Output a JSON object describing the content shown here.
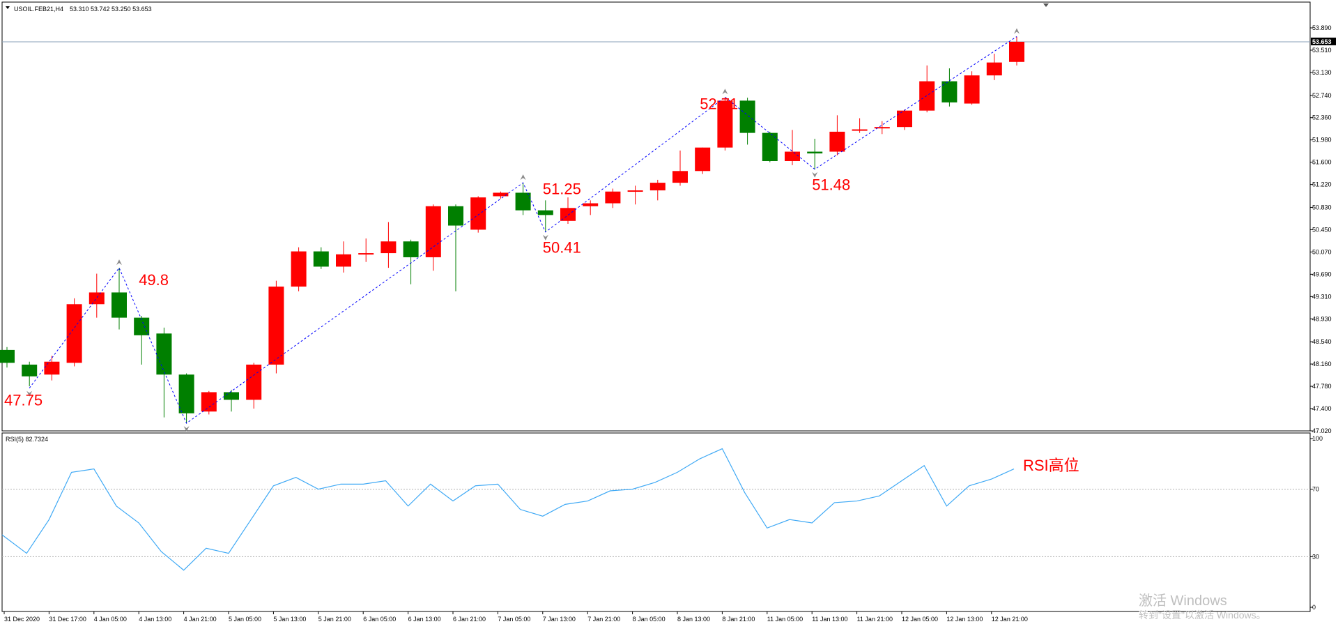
{
  "header": {
    "symbol": "USOIL.FEB21,H4",
    "ohlc": "53.310 53.742 53.250 53.653"
  },
  "current_price_label": "53.653",
  "rsi_header": "RSI(5) 82.7324",
  "watermark": {
    "line1": "激活 Windows",
    "line2": "转到\"设置\"以激活 Windows。"
  },
  "colors": {
    "bull": "#ff0000",
    "bear": "#007f00",
    "zigzag": "#0000ff",
    "rsi": "#3fa9f5",
    "annotation": "#ff0000",
    "axis_text": "#000000"
  },
  "chart_data": [
    {
      "type": "candlestick",
      "title": "USOIL.FEB21,H4",
      "ylim": [
        47.0,
        54.0
      ],
      "y_ticks": [
        "53.890",
        "53.510",
        "53.130",
        "52.740",
        "52.360",
        "51.980",
        "51.600",
        "51.220",
        "50.830",
        "50.450",
        "50.070",
        "49.690",
        "49.310",
        "48.930",
        "48.540",
        "48.160",
        "47.780",
        "47.400",
        "47.020"
      ],
      "y_tick_values": [
        53.89,
        53.51,
        53.13,
        52.74,
        52.36,
        51.98,
        51.6,
        51.22,
        50.83,
        50.45,
        50.07,
        49.69,
        49.31,
        48.93,
        48.54,
        48.16,
        47.78,
        47.4,
        47.02
      ],
      "current_price": 53.653,
      "candles": [
        {
          "o": 48.4,
          "h": 48.45,
          "c": 48.18,
          "l": 48.1
        },
        {
          "o": 48.15,
          "h": 48.2,
          "c": 47.95,
          "l": 47.78
        },
        {
          "o": 47.98,
          "h": 48.3,
          "c": 48.2,
          "l": 47.88
        },
        {
          "o": 48.18,
          "h": 49.28,
          "c": 49.18,
          "l": 48.12
        },
        {
          "o": 49.18,
          "h": 49.7,
          "c": 49.38,
          "l": 48.95
        },
        {
          "o": 49.38,
          "h": 49.8,
          "c": 48.95,
          "l": 48.75
        },
        {
          "o": 48.95,
          "h": 48.98,
          "c": 48.65,
          "l": 48.15
        },
        {
          "o": 48.68,
          "h": 48.78,
          "c": 47.98,
          "l": 47.25
        },
        {
          "o": 47.98,
          "h": 48.0,
          "c": 47.32,
          "l": 47.15
        },
        {
          "o": 47.35,
          "h": 47.7,
          "c": 47.68,
          "l": 47.3
        },
        {
          "o": 47.68,
          "h": 47.72,
          "c": 47.55,
          "l": 47.35
        },
        {
          "o": 47.55,
          "h": 48.18,
          "c": 48.15,
          "l": 47.4
        },
        {
          "o": 48.15,
          "h": 49.58,
          "c": 49.48,
          "l": 48.0
        },
        {
          "o": 49.48,
          "h": 50.15,
          "c": 50.08,
          "l": 49.4
        },
        {
          "o": 50.08,
          "h": 50.15,
          "c": 49.82,
          "l": 49.78
        },
        {
          "o": 49.82,
          "h": 50.25,
          "c": 50.03,
          "l": 49.72
        },
        {
          "o": 50.03,
          "h": 50.3,
          "c": 50.05,
          "l": 49.9
        },
        {
          "o": 50.05,
          "h": 50.58,
          "c": 50.25,
          "l": 49.8
        },
        {
          "o": 50.25,
          "h": 50.28,
          "c": 49.98,
          "l": 49.52
        },
        {
          "o": 49.98,
          "h": 50.88,
          "c": 50.85,
          "l": 49.75
        },
        {
          "o": 50.85,
          "h": 50.88,
          "c": 50.52,
          "l": 49.4
        },
        {
          "o": 50.45,
          "h": 51.02,
          "c": 51.0,
          "l": 50.4
        },
        {
          "o": 51.02,
          "h": 51.1,
          "c": 51.08,
          "l": 50.98
        },
        {
          "o": 51.08,
          "h": 51.25,
          "c": 50.78,
          "l": 50.7
        },
        {
          "o": 50.78,
          "h": 50.95,
          "c": 50.7,
          "l": 50.42
        },
        {
          "o": 50.6,
          "h": 51.0,
          "c": 50.82,
          "l": 50.55
        },
        {
          "o": 50.85,
          "h": 50.95,
          "c": 50.9,
          "l": 50.7
        },
        {
          "o": 50.9,
          "h": 51.15,
          "c": 51.1,
          "l": 50.82
        },
        {
          "o": 51.1,
          "h": 51.2,
          "c": 51.12,
          "l": 50.88
        },
        {
          "o": 51.12,
          "h": 51.3,
          "c": 51.25,
          "l": 50.95
        },
        {
          "o": 51.25,
          "h": 51.8,
          "c": 51.45,
          "l": 51.2
        },
        {
          "o": 51.45,
          "h": 51.85,
          "c": 51.85,
          "l": 51.4
        },
        {
          "o": 51.85,
          "h": 52.71,
          "c": 52.65,
          "l": 51.8
        },
        {
          "o": 52.65,
          "h": 52.7,
          "c": 52.1,
          "l": 51.9
        },
        {
          "o": 52.1,
          "h": 52.12,
          "c": 51.62,
          "l": 51.6
        },
        {
          "o": 51.62,
          "h": 52.15,
          "c": 51.78,
          "l": 51.55
        },
        {
          "o": 51.78,
          "h": 52.0,
          "c": 51.75,
          "l": 51.48
        },
        {
          "o": 51.78,
          "h": 52.4,
          "c": 52.12,
          "l": 51.72
        },
        {
          "o": 52.15,
          "h": 52.35,
          "c": 52.16,
          "l": 52.1
        },
        {
          "o": 52.18,
          "h": 52.3,
          "c": 52.2,
          "l": 52.08
        },
        {
          "o": 52.2,
          "h": 52.5,
          "c": 52.48,
          "l": 52.15
        },
        {
          "o": 52.48,
          "h": 53.25,
          "c": 52.98,
          "l": 52.45
        },
        {
          "o": 52.98,
          "h": 53.2,
          "c": 52.62,
          "l": 52.55
        },
        {
          "o": 52.6,
          "h": 53.15,
          "c": 53.08,
          "l": 52.58
        },
        {
          "o": 53.08,
          "h": 53.45,
          "c": 53.3,
          "l": 53.0
        },
        {
          "o": 53.31,
          "h": 53.742,
          "c": 53.653,
          "l": 53.25
        }
      ],
      "zigzag": [
        {
          "i": 1,
          "v": 47.75
        },
        {
          "i": 5,
          "v": 49.8
        },
        {
          "i": 8,
          "v": 47.15
        },
        {
          "i": 23,
          "v": 51.25
        },
        {
          "i": 24,
          "v": 50.41
        },
        {
          "i": 32,
          "v": 52.71
        },
        {
          "i": 36,
          "v": 51.48
        },
        {
          "i": 45,
          "v": 53.742
        }
      ],
      "annotations": [
        {
          "text": "47.75",
          "i": 0,
          "v": 47.55
        },
        {
          "text": "49.8",
          "i": 6,
          "v": 49.6
        },
        {
          "text": "51.25",
          "i": 24,
          "v": 51.15
        },
        {
          "text": "50.41",
          "i": 24,
          "v": 50.15
        },
        {
          "text": "52.71",
          "i": 31,
          "v": 52.6
        },
        {
          "text": "51.48",
          "i": 36,
          "v": 51.22
        }
      ],
      "x_labels": [
        "31 Dec 2020",
        "31 Dec 17:00",
        "4 Jan 05:00",
        "4 Jan 13:00",
        "4 Jan 21:00",
        "5 Jan 05:00",
        "5 Jan 13:00",
        "5 Jan 21:00",
        "6 Jan 05:00",
        "6 Jan 13:00",
        "6 Jan 21:00",
        "7 Jan 05:00",
        "7 Jan 13:00",
        "7 Jan 21:00",
        "8 Jan 05:00",
        "8 Jan 13:00",
        "8 Jan 21:00",
        "11 Jan 05:00",
        "11 Jan 13:00",
        "11 Jan 21:00",
        "12 Jan 05:00",
        "12 Jan 13:00",
        "12 Jan 21:00"
      ]
    },
    {
      "type": "line",
      "title": "RSI(5) 82.7324",
      "ylim": [
        0,
        100
      ],
      "y_ticks": [
        "100",
        "70",
        "30",
        "0"
      ],
      "y_tick_values": [
        100,
        70,
        30,
        0
      ],
      "levels": [
        70,
        30
      ],
      "series": [
        {
          "values": [
            42,
            32,
            52,
            80,
            82,
            60,
            50,
            33,
            22,
            35,
            32,
            52,
            72,
            77,
            70,
            73,
            73,
            75,
            60,
            73,
            63,
            72,
            73,
            58,
            54,
            61,
            63,
            69,
            70,
            74,
            80,
            88,
            94,
            68,
            47,
            52,
            50,
            62,
            63,
            66,
            75,
            84,
            60,
            72,
            76,
            82
          ]
        }
      ],
      "annotation": "RSI高位"
    }
  ]
}
